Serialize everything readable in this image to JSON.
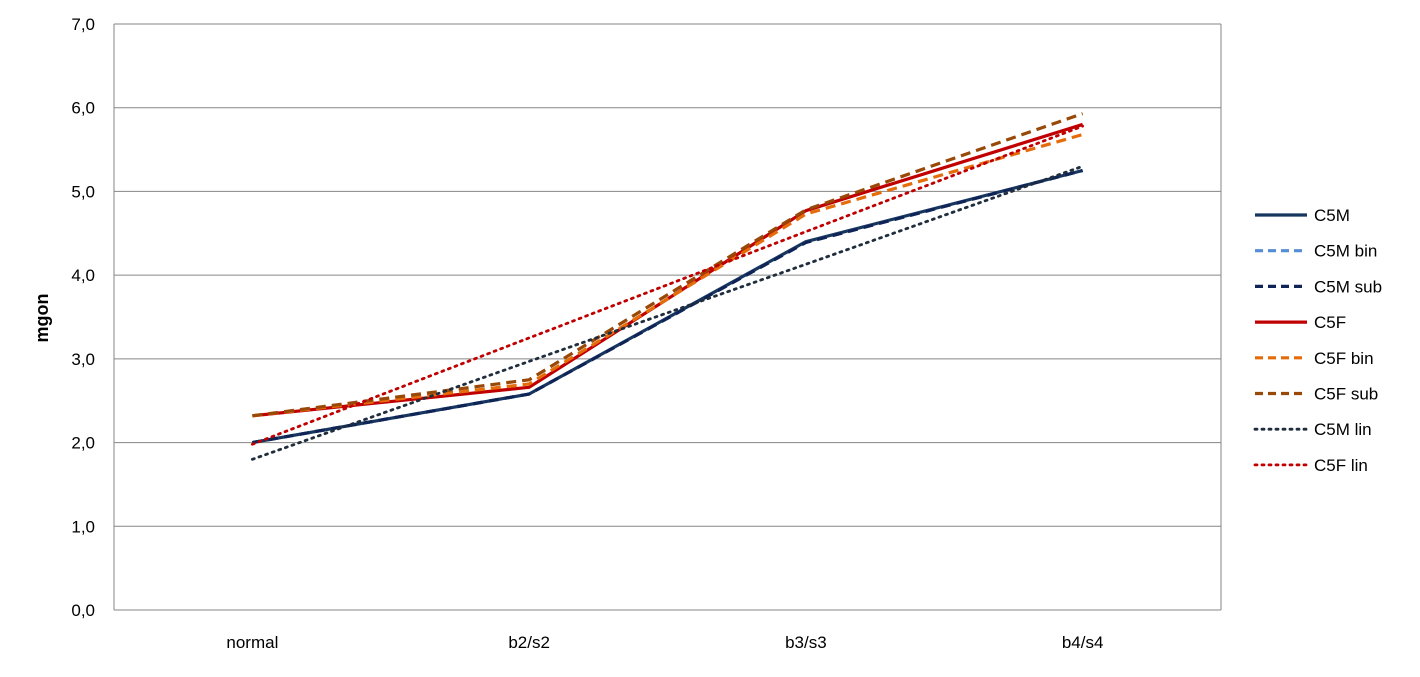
{
  "chart_data": {
    "type": "line",
    "title": "",
    "xlabel": "",
    "ylabel": "mgon",
    "categories": [
      "normal",
      "b2/s2",
      "b3/s3",
      "b4/s4"
    ],
    "ylim": [
      0,
      7
    ],
    "yticks": [
      0,
      1,
      2,
      3,
      4,
      5,
      6,
      7
    ],
    "ytick_labels": [
      "0,0",
      "1,0",
      "2,0",
      "3,0",
      "4,0",
      "5,0",
      "6,0",
      "7,0"
    ],
    "grid": true,
    "legend_position": "right",
    "series": [
      {
        "name": "C5M",
        "values": [
          2.0,
          2.58,
          4.4,
          5.25
        ],
        "color": "#17365d",
        "dash": "solid"
      },
      {
        "name": "C5M bin",
        "values": [
          2.0,
          2.58,
          4.39,
          5.25
        ],
        "color": "#558ed5",
        "dash": "dash"
      },
      {
        "name": "C5M sub",
        "values": [
          2.0,
          2.58,
          4.39,
          5.25
        ],
        "color": "#0f2455",
        "dash": "dash"
      },
      {
        "name": "C5F",
        "values": [
          2.32,
          2.66,
          4.77,
          5.8
        ],
        "color": "#c00000",
        "dash": "solid"
      },
      {
        "name": "C5F bin",
        "values": [
          2.32,
          2.7,
          4.73,
          5.68
        ],
        "color": "#e46c0a",
        "dash": "dash"
      },
      {
        "name": "C5F sub",
        "values": [
          2.32,
          2.75,
          4.78,
          5.93
        ],
        "color": "#984807",
        "dash": "dash"
      },
      {
        "name": "C5M lin",
        "values": [
          1.8,
          2.97,
          4.13,
          5.3
        ],
        "color": "#1f2d3d",
        "dash": "dot"
      },
      {
        "name": "C5F lin",
        "values": [
          1.98,
          3.25,
          4.52,
          5.78
        ],
        "color": "#c00000",
        "dash": "dot"
      }
    ]
  }
}
